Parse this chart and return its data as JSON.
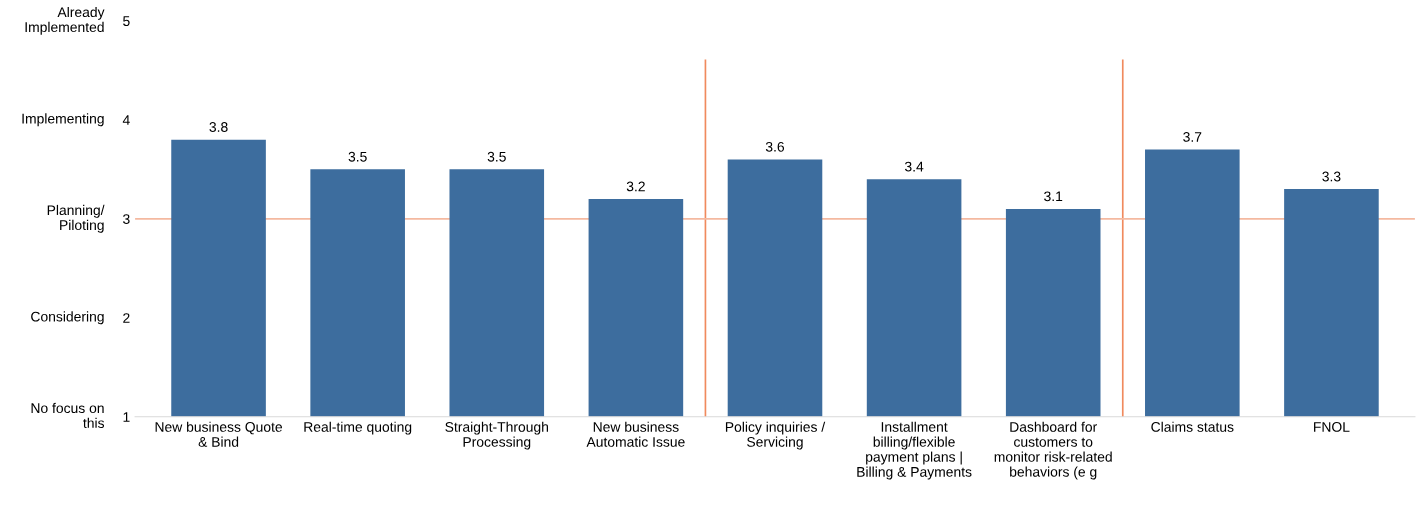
{
  "chart_data": {
    "type": "bar",
    "categories": [
      "New business Quote\n& Bind",
      "Real-time quoting",
      "Straight-Through\nProcessing",
      "New business\nAutomatic Issue",
      "Policy inquiries /\nServicing",
      "Installment\nbilling/flexible\npayment plans |\nBilling & Payments",
      "Dashboard for\ncustomers to\nmonitor risk-related\nbehaviors (e g",
      "Claims status",
      "FNOL"
    ],
    "values": [
      3.8,
      3.5,
      3.5,
      3.2,
      3.6,
      3.4,
      3.1,
      3.7,
      3.3
    ],
    "color": "#3d6d9e",
    "data_labels": true,
    "ylim": [
      1,
      5
    ],
    "yticks": [
      1,
      2,
      3,
      4,
      5
    ],
    "annotations": [
      "No focus on\nthis",
      "Considering",
      "Planning/\nPiloting",
      "Implementing",
      "Already\nImplemented"
    ],
    "grid": false,
    "ref_lines": [
      {
        "axis": "y",
        "value": 3,
        "color": "#f4b9a0"
      }
    ]
  }
}
